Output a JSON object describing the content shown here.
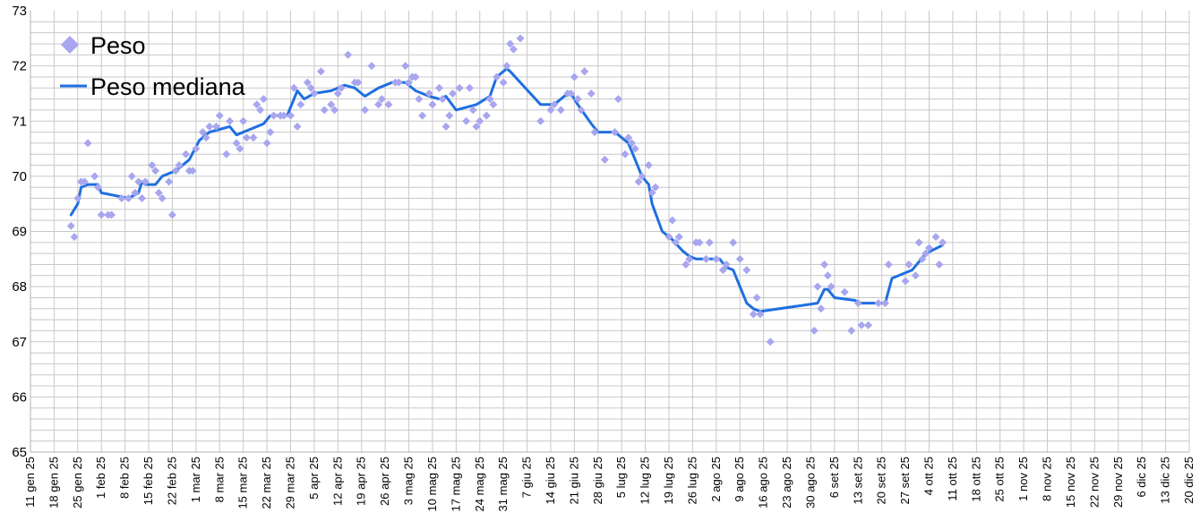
{
  "chart_data": {
    "type": "scatter",
    "title": "",
    "xlabel": "",
    "ylabel": "",
    "ylim": [
      65,
      73
    ],
    "xlim": [
      "2025-01-11",
      "2025-12-20"
    ],
    "y_ticks": [
      "65",
      "66",
      "67",
      "68",
      "69",
      "70",
      "71",
      "72",
      "73"
    ],
    "x_tick_labels": [
      "11 gen 25",
      "18 gen 25",
      "25 gen 25",
      "1 feb 25",
      "8 feb 25",
      "15 feb 25",
      "22 feb 25",
      "1 mar 25",
      "8 mar 25",
      "15 mar 25",
      "22 mar 25",
      "29 mar 25",
      "5 apr 25",
      "12 apr 25",
      "19 apr 25",
      "26 apr 25",
      "3 mag 25",
      "10 mag 25",
      "17 mag 25",
      "24 mag 25",
      "31 mag 25",
      "7 giu 25",
      "14 giu 25",
      "21 giu 25",
      "28 giu 25",
      "5 lug 25",
      "12 lug 25",
      "19 lug 25",
      "26 lug 25",
      "2 ago 25",
      "9 ago 25",
      "16 ago 25",
      "23 ago 25",
      "30 ago 25",
      "6 set 25",
      "13 set 25",
      "20 set 25",
      "27 set 25",
      "4 ott 25",
      "11 ott 25",
      "18 ott 25",
      "25 ott 25",
      "1 nov 25",
      "8 nov 25",
      "15 nov 25",
      "22 nov 25",
      "29 nov 25",
      "6 dic 25",
      "13 dic 25",
      "20 dic 25"
    ],
    "grid": true,
    "legend_position": "top-left",
    "series": [
      {
        "name": "Peso",
        "kind": "scatter",
        "color": "#a8a6ee",
        "points": [
          [
            "2025-01-23",
            69.1
          ],
          [
            "2025-01-24",
            68.9
          ],
          [
            "2025-01-25",
            69.6
          ],
          [
            "2025-01-26",
            69.9
          ],
          [
            "2025-01-27",
            69.9
          ],
          [
            "2025-01-28",
            70.6
          ],
          [
            "2025-01-30",
            70.0
          ],
          [
            "2025-01-31",
            69.8
          ],
          [
            "2025-02-01",
            69.3
          ],
          [
            "2025-02-03",
            69.3
          ],
          [
            "2025-02-04",
            69.3
          ],
          [
            "2025-02-07",
            69.6
          ],
          [
            "2025-02-09",
            69.6
          ],
          [
            "2025-02-10",
            70.0
          ],
          [
            "2025-02-11",
            69.7
          ],
          [
            "2025-02-12",
            69.9
          ],
          [
            "2025-02-13",
            69.6
          ],
          [
            "2025-02-14",
            69.9
          ],
          [
            "2025-02-16",
            70.2
          ],
          [
            "2025-02-17",
            70.1
          ],
          [
            "2025-02-18",
            69.7
          ],
          [
            "2025-02-19",
            69.6
          ],
          [
            "2025-02-21",
            69.9
          ],
          [
            "2025-02-22",
            69.3
          ],
          [
            "2025-02-23",
            70.1
          ],
          [
            "2025-02-24",
            70.2
          ],
          [
            "2025-02-26",
            70.4
          ],
          [
            "2025-02-27",
            70.1
          ],
          [
            "2025-02-28",
            70.1
          ],
          [
            "2025-03-01",
            70.5
          ],
          [
            "2025-03-03",
            70.8
          ],
          [
            "2025-03-04",
            70.7
          ],
          [
            "2025-03-05",
            70.9
          ],
          [
            "2025-03-07",
            70.9
          ],
          [
            "2025-03-08",
            71.1
          ],
          [
            "2025-03-10",
            70.4
          ],
          [
            "2025-03-11",
            71.0
          ],
          [
            "2025-03-13",
            70.6
          ],
          [
            "2025-03-14",
            70.5
          ],
          [
            "2025-03-15",
            71.0
          ],
          [
            "2025-03-16",
            70.7
          ],
          [
            "2025-03-18",
            70.7
          ],
          [
            "2025-03-19",
            71.3
          ],
          [
            "2025-03-20",
            71.2
          ],
          [
            "2025-03-21",
            71.4
          ],
          [
            "2025-03-22",
            70.6
          ],
          [
            "2025-03-23",
            70.8
          ],
          [
            "2025-03-24",
            71.1
          ],
          [
            "2025-03-26",
            71.1
          ],
          [
            "2025-03-27",
            71.1
          ],
          [
            "2025-03-29",
            71.1
          ],
          [
            "2025-03-30",
            71.6
          ],
          [
            "2025-03-31",
            70.9
          ],
          [
            "2025-04-01",
            71.3
          ],
          [
            "2025-04-03",
            71.7
          ],
          [
            "2025-04-04",
            71.6
          ],
          [
            "2025-04-05",
            71.5
          ],
          [
            "2025-04-07",
            71.9
          ],
          [
            "2025-04-08",
            71.2
          ],
          [
            "2025-04-10",
            71.3
          ],
          [
            "2025-04-11",
            71.2
          ],
          [
            "2025-04-12",
            71.5
          ],
          [
            "2025-04-13",
            71.6
          ],
          [
            "2025-04-15",
            72.2
          ],
          [
            "2025-04-17",
            71.7
          ],
          [
            "2025-04-18",
            71.7
          ],
          [
            "2025-04-20",
            71.2
          ],
          [
            "2025-04-22",
            72.0
          ],
          [
            "2025-04-24",
            71.3
          ],
          [
            "2025-04-25",
            71.4
          ],
          [
            "2025-04-27",
            71.3
          ],
          [
            "2025-04-29",
            71.7
          ],
          [
            "2025-04-30",
            71.7
          ],
          [
            "2025-05-02",
            72.0
          ],
          [
            "2025-05-03",
            71.7
          ],
          [
            "2025-05-04",
            71.8
          ],
          [
            "2025-05-05",
            71.8
          ],
          [
            "2025-05-06",
            71.4
          ],
          [
            "2025-05-07",
            71.1
          ],
          [
            "2025-05-09",
            71.5
          ],
          [
            "2025-05-10",
            71.3
          ],
          [
            "2025-05-12",
            71.6
          ],
          [
            "2025-05-13",
            71.4
          ],
          [
            "2025-05-14",
            70.9
          ],
          [
            "2025-05-15",
            71.1
          ],
          [
            "2025-05-16",
            71.5
          ],
          [
            "2025-05-18",
            71.6
          ],
          [
            "2025-05-20",
            71.0
          ],
          [
            "2025-05-21",
            71.6
          ],
          [
            "2025-05-22",
            71.2
          ],
          [
            "2025-05-23",
            70.9
          ],
          [
            "2025-05-24",
            71.0
          ],
          [
            "2025-05-26",
            71.1
          ],
          [
            "2025-05-27",
            71.4
          ],
          [
            "2025-05-28",
            71.3
          ],
          [
            "2025-05-29",
            71.8
          ],
          [
            "2025-05-31",
            71.7
          ],
          [
            "2025-06-01",
            72.0
          ],
          [
            "2025-06-02",
            72.4
          ],
          [
            "2025-06-03",
            72.3
          ],
          [
            "2025-06-05",
            72.5
          ],
          [
            "2025-06-11",
            71.0
          ],
          [
            "2025-06-14",
            71.2
          ],
          [
            "2025-06-15",
            71.3
          ],
          [
            "2025-06-17",
            71.2
          ],
          [
            "2025-06-19",
            71.5
          ],
          [
            "2025-06-20",
            71.5
          ],
          [
            "2025-06-21",
            71.8
          ],
          [
            "2025-06-22",
            71.4
          ],
          [
            "2025-06-23",
            71.2
          ],
          [
            "2025-06-24",
            71.9
          ],
          [
            "2025-06-26",
            71.5
          ],
          [
            "2025-06-27",
            70.8
          ],
          [
            "2025-06-30",
            70.3
          ],
          [
            "2025-07-03",
            70.8
          ],
          [
            "2025-07-04",
            71.4
          ],
          [
            "2025-07-06",
            70.4
          ],
          [
            "2025-07-07",
            70.7
          ],
          [
            "2025-07-08",
            70.6
          ],
          [
            "2025-07-09",
            70.5
          ],
          [
            "2025-07-10",
            69.9
          ],
          [
            "2025-07-11",
            70.0
          ],
          [
            "2025-07-13",
            70.2
          ],
          [
            "2025-07-14",
            69.7
          ],
          [
            "2025-07-15",
            69.8
          ],
          [
            "2025-07-19",
            68.9
          ],
          [
            "2025-07-20",
            69.2
          ],
          [
            "2025-07-21",
            68.8
          ],
          [
            "2025-07-22",
            68.9
          ],
          [
            "2025-07-24",
            68.4
          ],
          [
            "2025-07-25",
            68.5
          ],
          [
            "2025-07-27",
            68.8
          ],
          [
            "2025-07-28",
            68.8
          ],
          [
            "2025-07-30",
            68.5
          ],
          [
            "2025-07-31",
            68.8
          ],
          [
            "2025-08-02",
            68.5
          ],
          [
            "2025-08-04",
            68.3
          ],
          [
            "2025-08-05",
            68.4
          ],
          [
            "2025-08-07",
            68.8
          ],
          [
            "2025-08-09",
            68.5
          ],
          [
            "2025-08-11",
            68.3
          ],
          [
            "2025-08-13",
            67.5
          ],
          [
            "2025-08-14",
            67.8
          ],
          [
            "2025-08-15",
            67.5
          ],
          [
            "2025-08-18",
            67.0
          ],
          [
            "2025-08-31",
            67.2
          ],
          [
            "2025-09-01",
            68.0
          ],
          [
            "2025-09-02",
            67.6
          ],
          [
            "2025-09-03",
            68.4
          ],
          [
            "2025-09-04",
            68.2
          ],
          [
            "2025-09-05",
            68.0
          ],
          [
            "2025-09-09",
            67.9
          ],
          [
            "2025-09-11",
            67.2
          ],
          [
            "2025-09-13",
            67.7
          ],
          [
            "2025-09-14",
            67.3
          ],
          [
            "2025-09-16",
            67.3
          ],
          [
            "2025-09-19",
            67.7
          ],
          [
            "2025-09-21",
            67.7
          ],
          [
            "2025-09-22",
            68.4
          ],
          [
            "2025-09-27",
            68.1
          ],
          [
            "2025-09-28",
            68.4
          ],
          [
            "2025-09-30",
            68.2
          ],
          [
            "2025-10-01",
            68.8
          ],
          [
            "2025-10-02",
            68.5
          ],
          [
            "2025-10-03",
            68.6
          ],
          [
            "2025-10-04",
            68.7
          ],
          [
            "2025-10-06",
            68.9
          ],
          [
            "2025-10-07",
            68.4
          ],
          [
            "2025-10-08",
            68.8
          ]
        ]
      },
      {
        "name": "Peso mediana",
        "kind": "line",
        "color": "#1f6fe0",
        "points": [
          [
            "2025-01-23",
            69.3
          ],
          [
            "2025-01-25",
            69.5
          ],
          [
            "2025-01-26",
            69.8
          ],
          [
            "2025-01-28",
            69.85
          ],
          [
            "2025-01-31",
            69.85
          ],
          [
            "2025-02-01",
            69.7
          ],
          [
            "2025-02-05",
            69.65
          ],
          [
            "2025-02-09",
            69.6
          ],
          [
            "2025-02-12",
            69.7
          ],
          [
            "2025-02-13",
            69.9
          ],
          [
            "2025-02-14",
            69.85
          ],
          [
            "2025-02-17",
            69.85
          ],
          [
            "2025-02-19",
            70.0
          ],
          [
            "2025-02-23",
            70.1
          ],
          [
            "2025-02-27",
            70.3
          ],
          [
            "2025-03-02",
            70.65
          ],
          [
            "2025-03-05",
            70.8
          ],
          [
            "2025-03-08",
            70.85
          ],
          [
            "2025-03-11",
            70.9
          ],
          [
            "2025-03-13",
            70.75
          ],
          [
            "2025-03-17",
            70.85
          ],
          [
            "2025-03-21",
            70.95
          ],
          [
            "2025-03-23",
            71.1
          ],
          [
            "2025-03-28",
            71.1
          ],
          [
            "2025-03-31",
            71.55
          ],
          [
            "2025-04-02",
            71.4
          ],
          [
            "2025-04-05",
            71.5
          ],
          [
            "2025-04-10",
            71.55
          ],
          [
            "2025-04-14",
            71.65
          ],
          [
            "2025-04-17",
            71.6
          ],
          [
            "2025-04-20",
            71.45
          ],
          [
            "2025-04-24",
            71.6
          ],
          [
            "2025-04-28",
            71.7
          ],
          [
            "2025-05-02",
            71.7
          ],
          [
            "2025-05-05",
            71.55
          ],
          [
            "2025-05-09",
            71.45
          ],
          [
            "2025-05-12",
            71.4
          ],
          [
            "2025-05-14",
            71.45
          ],
          [
            "2025-05-17",
            71.2
          ],
          [
            "2025-05-23",
            71.3
          ],
          [
            "2025-05-27",
            71.45
          ],
          [
            "2025-05-29",
            71.8
          ],
          [
            "2025-06-01",
            71.95
          ],
          [
            "2025-06-02",
            71.9
          ],
          [
            "2025-06-05",
            71.7
          ],
          [
            "2025-06-11",
            71.3
          ],
          [
            "2025-06-15",
            71.3
          ],
          [
            "2025-06-18",
            71.45
          ],
          [
            "2025-06-20",
            71.5
          ],
          [
            "2025-06-22",
            71.3
          ],
          [
            "2025-06-26",
            70.95
          ],
          [
            "2025-06-28",
            70.8
          ],
          [
            "2025-07-03",
            70.8
          ],
          [
            "2025-07-05",
            70.7
          ],
          [
            "2025-07-07",
            70.6
          ],
          [
            "2025-07-09",
            70.3
          ],
          [
            "2025-07-11",
            70.0
          ],
          [
            "2025-07-13",
            69.85
          ],
          [
            "2025-07-14",
            69.5
          ],
          [
            "2025-07-17",
            69.0
          ],
          [
            "2025-07-20",
            68.85
          ],
          [
            "2025-07-23",
            68.65
          ],
          [
            "2025-07-25",
            68.55
          ],
          [
            "2025-07-27",
            68.5
          ],
          [
            "2025-08-03",
            68.5
          ],
          [
            "2025-08-05",
            68.35
          ],
          [
            "2025-08-07",
            68.3
          ],
          [
            "2025-08-11",
            67.7
          ],
          [
            "2025-08-13",
            67.6
          ],
          [
            "2025-08-15",
            67.55
          ],
          [
            "2025-09-01",
            67.7
          ],
          [
            "2025-09-03",
            67.95
          ],
          [
            "2025-09-04",
            67.95
          ],
          [
            "2025-09-06",
            67.8
          ],
          [
            "2025-09-12",
            67.75
          ],
          [
            "2025-09-14",
            67.7
          ],
          [
            "2025-09-21",
            67.7
          ],
          [
            "2025-09-23",
            68.15
          ],
          [
            "2025-09-29",
            68.3
          ],
          [
            "2025-10-01",
            68.45
          ],
          [
            "2025-10-03",
            68.6
          ],
          [
            "2025-10-08",
            68.75
          ]
        ]
      }
    ]
  }
}
